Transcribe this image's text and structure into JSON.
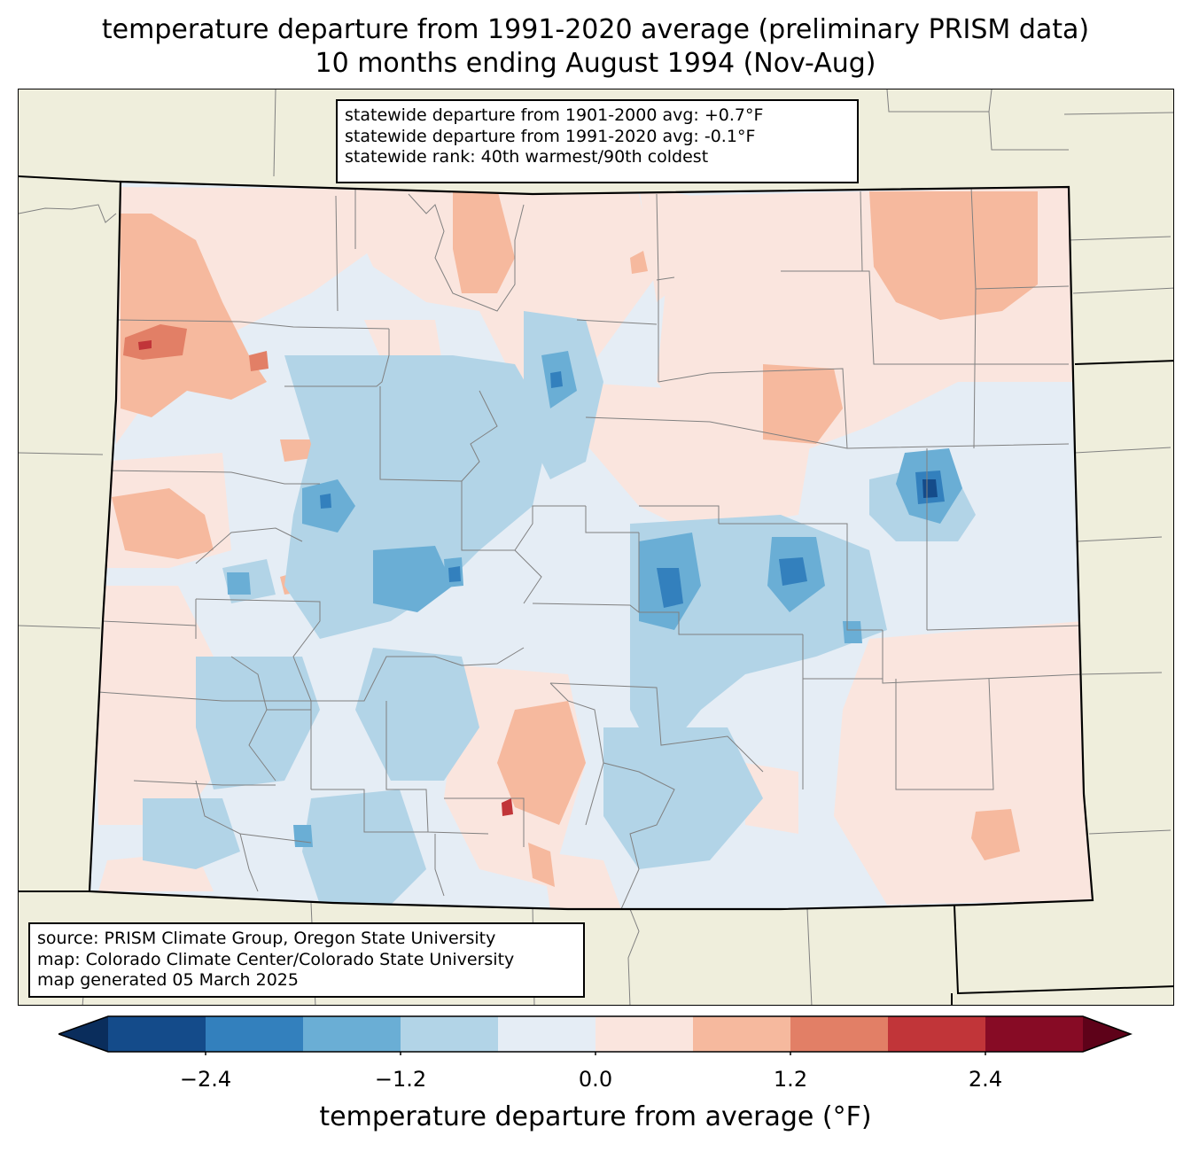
{
  "title": {
    "line1": "temperature departure from 1991-2020 average (preliminary PRISM data)",
    "line2": "10 months ending August 1994 (Nov-Aug)"
  },
  "stats_box": {
    "line1": "statewide departure from 1901-2000 avg: +0.7°F",
    "line2": "statewide departure from 1991-2020 avg: -0.1°F",
    "line3": "statewide rank: 40th warmest/90th coldest"
  },
  "source_box": {
    "line1": "source: PRISM Climate Group, Oregon State University",
    "line2": "map: Colorado Climate Center/Colorado State University",
    "line3": "map generated 05 March 2025"
  },
  "colorbar": {
    "label": "temperature departure from average (°F)",
    "ticks": [
      "−2.4",
      "−1.2",
      "0.0",
      "1.2",
      "2.4"
    ],
    "tick_values": [
      -2.4,
      -1.2,
      0.0,
      1.2,
      2.4
    ],
    "levels": [
      -3.0,
      -2.4,
      -1.8,
      -1.2,
      -0.6,
      0.0,
      0.6,
      1.2,
      1.8,
      2.4,
      3.0
    ],
    "colors": [
      "#144b8a",
      "#3380bd",
      "#6aaed5",
      "#b2d4e7",
      "#e5edf5",
      "#fae5de",
      "#f6b99e",
      "#e27f66",
      "#c13539",
      "#870b25"
    ],
    "under_color": "#0a2d5c",
    "over_color": "#5e0219",
    "extend": "both"
  },
  "map_colors": {
    "land_background": "#efeedc",
    "state_border": "#000000",
    "county_border": "#808080"
  }
}
